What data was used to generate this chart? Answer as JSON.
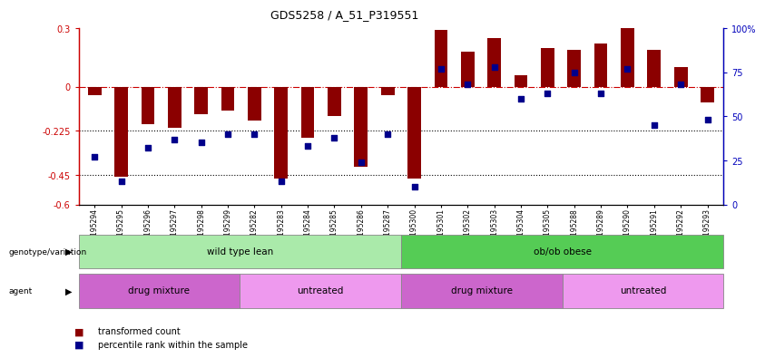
{
  "title": "GDS5258 / A_51_P319551",
  "samples": [
    "GSM1195294",
    "GSM1195295",
    "GSM1195296",
    "GSM1195297",
    "GSM1195298",
    "GSM1195299",
    "GSM1195282",
    "GSM1195283",
    "GSM1195284",
    "GSM1195285",
    "GSM1195286",
    "GSM1195287",
    "GSM1195300",
    "GSM1195301",
    "GSM1195302",
    "GSM1195303",
    "GSM1195304",
    "GSM1195305",
    "GSM1195288",
    "GSM1195289",
    "GSM1195290",
    "GSM1195291",
    "GSM1195292",
    "GSM1195293"
  ],
  "red_values": [
    -0.04,
    -0.46,
    -0.19,
    -0.21,
    -0.14,
    -0.12,
    -0.17,
    -0.47,
    -0.26,
    -0.15,
    -0.41,
    -0.04,
    -0.47,
    0.29,
    0.18,
    0.25,
    0.06,
    0.2,
    0.19,
    0.22,
    0.3,
    0.19,
    0.1,
    -0.08
  ],
  "blue_values_pct": [
    27,
    13,
    32,
    37,
    35,
    40,
    40,
    13,
    33,
    38,
    24,
    40,
    10,
    77,
    68,
    78,
    60,
    63,
    75,
    63,
    77,
    45,
    68,
    48
  ],
  "ylim_left": [
    -0.6,
    0.3
  ],
  "ylim_right": [
    0,
    100
  ],
  "genotype_groups": [
    {
      "label": "wild type lean",
      "start": 0,
      "end": 12,
      "color": "#aaeaaa"
    },
    {
      "label": "ob/ob obese",
      "start": 12,
      "end": 24,
      "color": "#55cc55"
    }
  ],
  "agent_groups": [
    {
      "label": "drug mixture",
      "start": 0,
      "end": 6,
      "color": "#cc66cc"
    },
    {
      "label": "untreated",
      "start": 6,
      "end": 12,
      "color": "#ee99ee"
    },
    {
      "label": "drug mixture",
      "start": 12,
      "end": 18,
      "color": "#cc66cc"
    },
    {
      "label": "untreated",
      "start": 18,
      "end": 24,
      "color": "#ee99ee"
    }
  ],
  "bar_color": "#8B0000",
  "dot_color": "#00008B",
  "axis_color_left": "#CC0000",
  "axis_color_right": "#0000BB",
  "left_yticks": [
    0.3,
    0.0,
    -0.225,
    -0.45,
    -0.6
  ],
  "left_yticklabels": [
    "0.3",
    "0",
    "-0.225",
    "-0.45",
    "-0.6"
  ],
  "right_yticks": [
    100,
    75,
    50,
    25,
    0
  ],
  "right_yticklabels": [
    "100%",
    "75",
    "50",
    "25",
    "0"
  ],
  "hline_red": 0.0,
  "hlines_dotted": [
    -0.225,
    -0.45
  ]
}
